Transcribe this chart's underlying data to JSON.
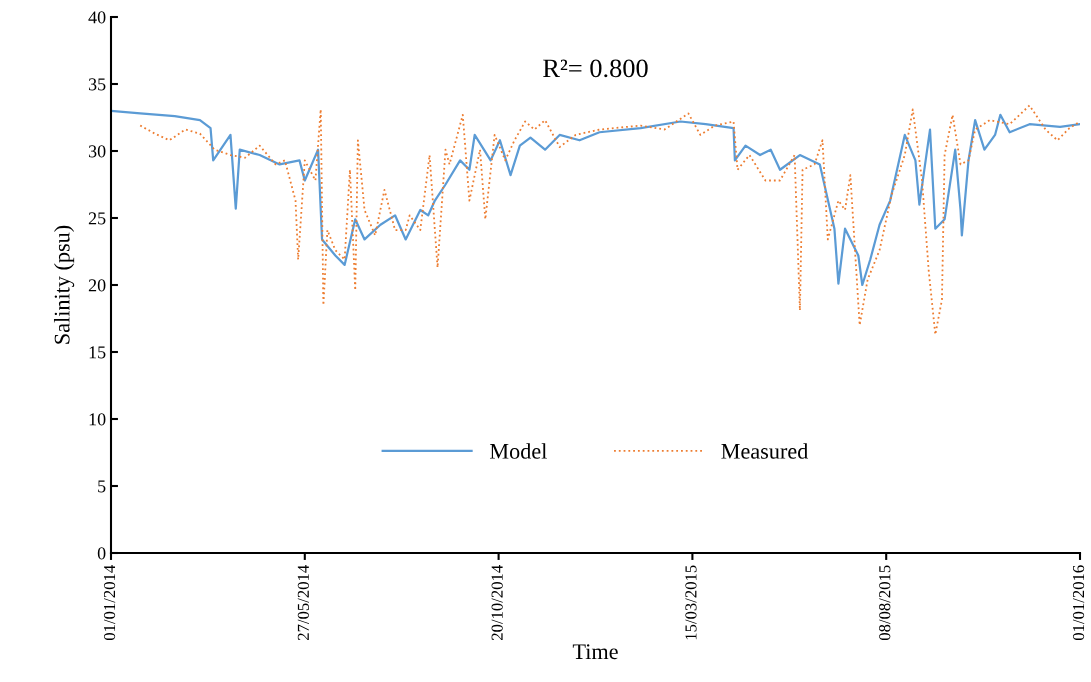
{
  "chart_data": {
    "type": "line",
    "xlabel": "Time",
    "ylabel": "Salinity (psu)",
    "annotations": [
      "R²= 0.800"
    ],
    "legend": "bottom",
    "grid": false,
    "marker": "none",
    "xlim": [
      "2014-01-01",
      "2016-01-01"
    ],
    "xticks": [
      {
        "value": "2014-01-01",
        "label": "01/01/2014"
      },
      {
        "value": "2014-05-27",
        "label": "27/05/2014"
      },
      {
        "value": "2014-10-20",
        "label": "20/10/2014"
      },
      {
        "value": "2015-03-15",
        "label": "15/03/2015"
      },
      {
        "value": "2015-08-08",
        "label": "08/08/2015"
      },
      {
        "value": "2016-01-01",
        "label": "01/01/2016"
      }
    ],
    "ylim": [
      0,
      40
    ],
    "yticks": [
      0,
      5,
      10,
      15,
      20,
      25,
      30,
      35,
      40
    ],
    "series": [
      {
        "name": "Model",
        "color": "#5b9bd5",
        "line_style": "solid",
        "x": [
          "2014-01-01",
          "2014-01-23",
          "2014-02-18",
          "2014-03-09",
          "2014-03-17",
          "2014-03-19",
          "2014-04-01",
          "2014-04-05",
          "2014-04-08",
          "2014-04-23",
          "2014-05-08",
          "2014-05-23",
          "2014-05-27",
          "2014-06-06",
          "2014-06-09",
          "2014-06-19",
          "2014-06-26",
          "2014-07-04",
          "2014-07-11",
          "2014-07-23",
          "2014-08-03",
          "2014-08-11",
          "2014-08-22",
          "2014-08-28",
          "2014-09-02",
          "2014-09-10",
          "2014-09-21",
          "2014-09-28",
          "2014-10-02",
          "2014-10-14",
          "2014-10-21",
          "2014-10-29",
          "2014-11-05",
          "2014-11-13",
          "2014-11-24",
          "2014-12-05",
          "2014-12-20",
          "2015-01-04",
          "2015-02-04",
          "2015-03-06",
          "2015-03-25",
          "2015-04-15",
          "2015-04-16",
          "2015-04-24",
          "2015-05-05",
          "2015-05-13",
          "2015-05-20",
          "2015-06-04",
          "2015-06-19",
          "2015-06-30",
          "2015-07-03",
          "2015-07-08",
          "2015-07-18",
          "2015-07-21",
          "2015-07-27",
          "2015-08-03",
          "2015-08-11",
          "2015-08-22",
          "2015-08-30",
          "2015-09-02",
          "2015-09-10",
          "2015-09-14",
          "2015-09-21",
          "2015-09-29",
          "2015-10-03",
          "2015-10-04",
          "2015-10-09",
          "2015-10-14",
          "2015-10-21",
          "2015-10-29",
          "2015-11-02",
          "2015-11-09",
          "2015-11-24",
          "2015-12-17",
          "2016-01-01"
        ],
        "values": [
          33.0,
          32.8,
          32.6,
          32.3,
          31.7,
          29.3,
          31.2,
          25.7,
          30.1,
          29.7,
          29.0,
          29.3,
          27.8,
          30.1,
          23.4,
          22.2,
          21.5,
          24.9,
          23.4,
          24.5,
          25.2,
          23.4,
          25.6,
          25.2,
          26.3,
          27.5,
          29.3,
          28.6,
          31.2,
          29.3,
          30.8,
          28.2,
          30.4,
          31.0,
          30.1,
          31.2,
          30.8,
          31.4,
          31.7,
          32.2,
          32.0,
          31.7,
          29.3,
          30.4,
          29.7,
          30.1,
          28.6,
          29.7,
          29.0,
          24.2,
          20.1,
          24.2,
          22.2,
          20.0,
          21.9,
          24.5,
          26.3,
          31.2,
          29.3,
          26.0,
          31.6,
          24.2,
          24.9,
          30.1,
          25.6,
          23.7,
          29.3,
          32.3,
          30.1,
          31.2,
          32.7,
          31.4,
          32.0,
          31.8,
          32.0
        ]
      },
      {
        "name": "Measured",
        "color": "#ed7d31",
        "line_style": "dotted",
        "x": [
          "2014-01-23",
          "2014-02-03",
          "2014-02-14",
          "2014-02-26",
          "2014-03-09",
          "2014-03-20",
          "2014-04-01",
          "2014-04-12",
          "2014-04-23",
          "2014-05-05",
          "2014-05-12",
          "2014-05-20",
          "2014-05-22",
          "2014-05-27",
          "2014-06-04",
          "2014-06-08",
          "2014-06-10",
          "2014-06-13",
          "2014-06-19",
          "2014-06-26",
          "2014-06-30",
          "2014-07-04",
          "2014-07-06",
          "2014-07-11",
          "2014-07-19",
          "2014-07-26",
          "2014-08-03",
          "2014-08-11",
          "2014-08-14",
          "2014-08-22",
          "2014-08-29",
          "2014-09-04",
          "2014-09-10",
          "2014-09-13",
          "2014-09-23",
          "2014-09-28",
          "2014-10-06",
          "2014-10-10",
          "2014-10-17",
          "2014-10-25",
          "2014-11-01",
          "2014-11-09",
          "2014-11-16",
          "2014-11-24",
          "2014-12-05",
          "2014-12-17",
          "2015-01-04",
          "2015-02-04",
          "2015-02-22",
          "2015-03-12",
          "2015-03-21",
          "2015-04-01",
          "2015-04-15",
          "2015-04-18",
          "2015-04-27",
          "2015-05-09",
          "2015-05-20",
          "2015-05-31",
          "2015-06-04",
          "2015-06-06",
          "2015-06-15",
          "2015-06-21",
          "2015-06-25",
          "2015-07-03",
          "2015-07-08",
          "2015-07-12",
          "2015-07-19",
          "2015-07-25",
          "2015-08-03",
          "2015-08-12",
          "2015-08-22",
          "2015-08-28",
          "2015-09-04",
          "2015-09-09",
          "2015-09-14",
          "2015-09-19",
          "2015-09-21",
          "2015-09-27",
          "2015-10-03",
          "2015-10-09",
          "2015-10-14",
          "2015-10-25",
          "2015-11-09",
          "2015-11-24",
          "2015-12-06",
          "2015-12-15",
          "2015-12-24",
          "2016-01-01"
        ],
        "values": [
          31.9,
          31.3,
          30.8,
          31.6,
          31.3,
          30.1,
          29.7,
          29.5,
          30.4,
          29.0,
          29.3,
          26.3,
          21.9,
          29.3,
          27.8,
          33.1,
          18.5,
          24.1,
          22.6,
          21.9,
          28.6,
          19.6,
          30.8,
          25.6,
          23.7,
          27.1,
          24.1,
          24.1,
          25.2,
          24.1,
          29.7,
          21.3,
          30.1,
          29.0,
          32.7,
          26.3,
          30.1,
          24.9,
          31.2,
          29.3,
          30.8,
          32.2,
          31.6,
          32.3,
          30.3,
          31.2,
          31.6,
          31.9,
          31.6,
          32.8,
          31.2,
          31.9,
          32.2,
          28.6,
          29.7,
          27.8,
          27.8,
          29.7,
          18.1,
          28.6,
          29.0,
          30.8,
          23.4,
          26.3,
          25.6,
          28.2,
          17.0,
          20.4,
          22.6,
          26.7,
          29.7,
          33.1,
          27.8,
          21.1,
          16.3,
          18.9,
          29.7,
          32.7,
          29.0,
          29.3,
          31.6,
          32.3,
          32.0,
          33.4,
          31.6,
          30.8,
          31.7,
          32.2
        ]
      }
    ]
  }
}
